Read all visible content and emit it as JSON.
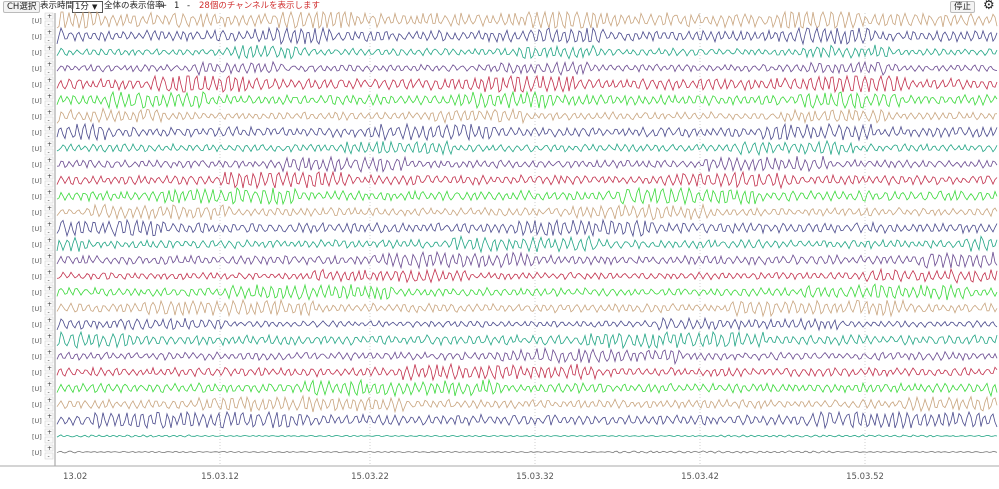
{
  "toolbar": {
    "channel_select": "CH選択",
    "display_time_label": "表示時間",
    "display_time_value": "1分",
    "zoom_label": "全体の表示倍率",
    "zoom_plus": "+",
    "zoom_value": "1",
    "zoom_minus": "-",
    "status": "28個のチャンネルを表示します",
    "stop": "停止"
  },
  "channel_controls": {
    "plus": "+",
    "minus": "-",
    "unit": "[U]"
  },
  "time_axis": {
    "labels": [
      "13.02",
      "15.03.12",
      "15.03.22",
      "15.03.32",
      "15.03.42",
      "15.03.52"
    ]
  }
}
